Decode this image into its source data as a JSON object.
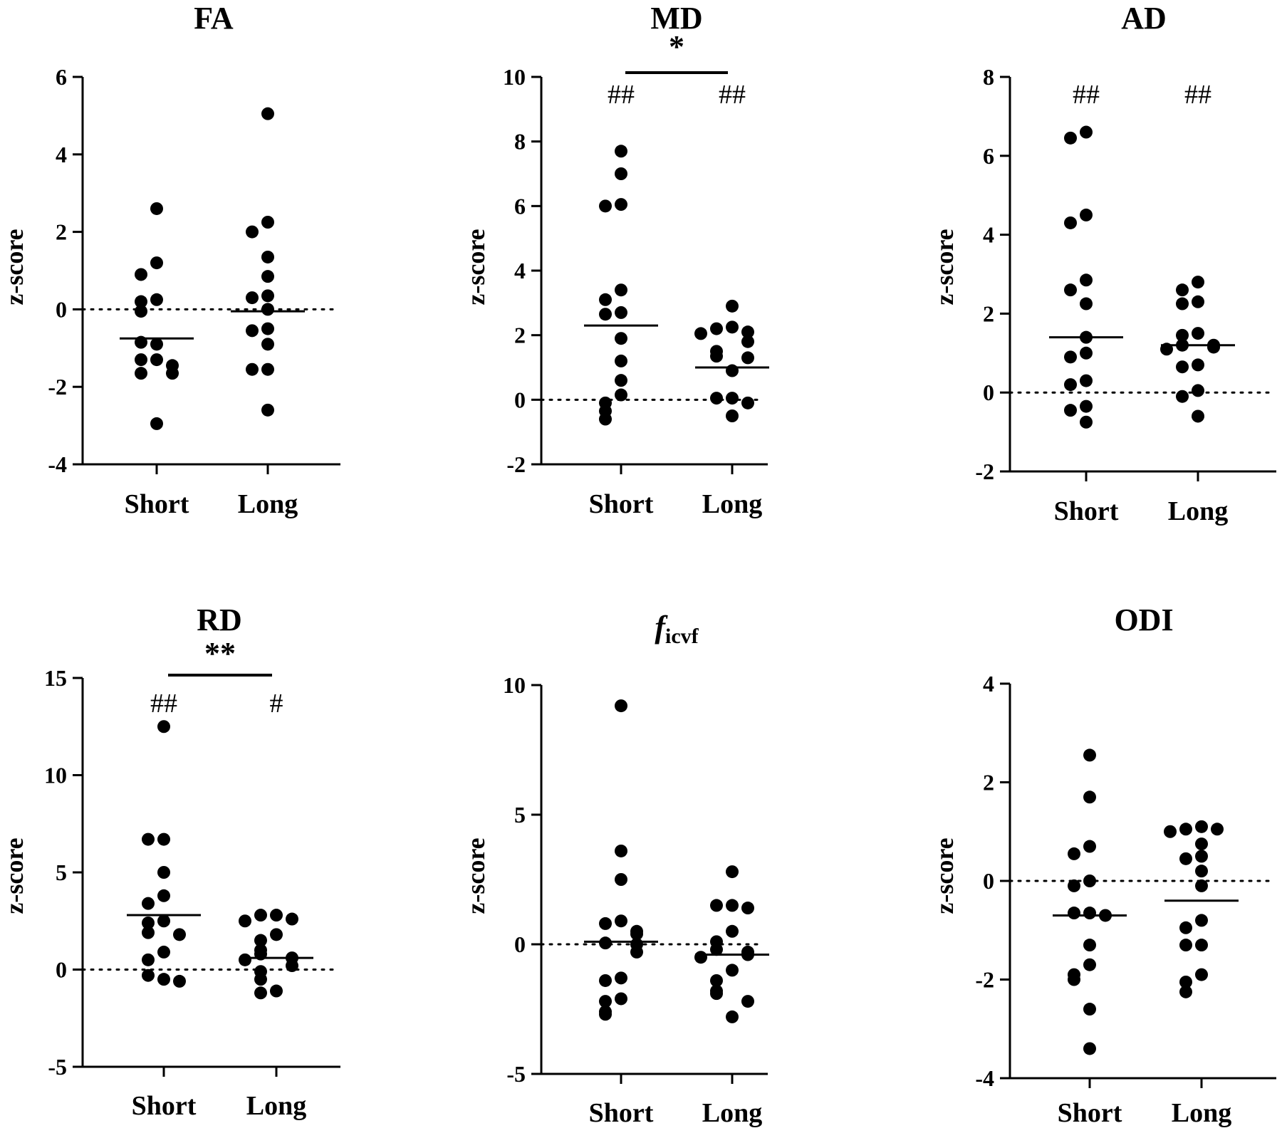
{
  "figure": {
    "background": "#ffffff",
    "ink": "#000000"
  },
  "chart_data": [
    {
      "type": "scatter",
      "title": "FA",
      "ylabel": "z-score",
      "ylim": [
        -4,
        6
      ],
      "yticks": [
        -4,
        -2,
        0,
        2,
        4,
        6
      ],
      "ytick_labels": [
        "-4",
        "-2",
        "0",
        "2",
        "4",
        "6"
      ],
      "categories": [
        "Short",
        "Long"
      ],
      "reference_line": 0,
      "series": [
        {
          "category": "Short",
          "values": [
            2.6,
            1.2,
            0.9,
            0.25,
            0.2,
            -0.05,
            -0.9,
            -0.85,
            -1.3,
            -1.3,
            -1.45,
            -1.65,
            -1.65,
            -2.95
          ],
          "mean": -0.75
        },
        {
          "category": "Long",
          "values": [
            5.05,
            2.25,
            2.0,
            1.35,
            0.85,
            0.35,
            0.3,
            0.0,
            -0.5,
            -0.55,
            -0.9,
            -1.55,
            -1.55,
            -2.6
          ],
          "mean": -0.05
        }
      ],
      "group_marks": [],
      "comparison": null
    },
    {
      "type": "scatter",
      "title": "MD",
      "ylabel": "z-score",
      "ylim": [
        -2,
        10
      ],
      "yticks": [
        -2,
        0,
        2,
        4,
        6,
        8,
        10
      ],
      "ytick_labels": [
        "-2",
        "0",
        "2",
        "4",
        "6",
        "8",
        "10"
      ],
      "categories": [
        "Short",
        "Long"
      ],
      "reference_line": 0,
      "series": [
        {
          "category": "Short",
          "values": [
            7.7,
            7.0,
            6.05,
            6.0,
            3.4,
            3.1,
            2.7,
            2.65,
            1.9,
            1.2,
            0.6,
            0.15,
            -0.1,
            -0.35,
            -0.6
          ],
          "mean": 2.3
        },
        {
          "category": "Long",
          "values": [
            2.9,
            2.25,
            2.2,
            2.1,
            2.05,
            1.8,
            1.5,
            1.35,
            1.3,
            0.9,
            0.05,
            0.05,
            -0.1,
            -0.5
          ],
          "mean": 1.0
        }
      ],
      "group_marks": [
        "##",
        "##"
      ],
      "comparison": "*"
    },
    {
      "type": "scatter",
      "title": "AD",
      "ylabel": "z-score",
      "ylim": [
        -2,
        8
      ],
      "yticks": [
        -2,
        0,
        2,
        4,
        6,
        8
      ],
      "ytick_labels": [
        "-2",
        "0",
        "2",
        "4",
        "6",
        "8"
      ],
      "categories": [
        "Short",
        "Long"
      ],
      "reference_line": 0,
      "series": [
        {
          "category": "Short",
          "values": [
            6.6,
            6.45,
            4.5,
            4.3,
            2.85,
            2.6,
            2.25,
            1.4,
            1.0,
            0.9,
            0.3,
            0.2,
            -0.35,
            -0.45,
            -0.75
          ],
          "mean": 1.4
        },
        {
          "category": "Long",
          "values": [
            2.8,
            2.6,
            2.3,
            2.25,
            1.5,
            1.45,
            1.2,
            1.2,
            1.15,
            1.1,
            0.7,
            0.65,
            0.05,
            -0.1,
            -0.6
          ],
          "mean": 1.2
        }
      ],
      "group_marks": [
        "##",
        "##"
      ],
      "comparison": null
    },
    {
      "type": "scatter",
      "title": "RD",
      "ylabel": "z-score",
      "ylim": [
        -5,
        15
      ],
      "yticks": [
        -5,
        0,
        5,
        10,
        15
      ],
      "ytick_labels": [
        "-5",
        "0",
        "5",
        "10",
        "15"
      ],
      "categories": [
        "Short",
        "Long"
      ],
      "reference_line": 0,
      "series": [
        {
          "category": "Short",
          "values": [
            12.5,
            6.7,
            6.7,
            5.0,
            3.8,
            3.4,
            2.5,
            2.4,
            1.9,
            1.8,
            0.9,
            0.5,
            -0.5,
            -0.3,
            -0.6
          ],
          "mean": 2.8
        },
        {
          "category": "Long",
          "values": [
            2.8,
            2.8,
            2.6,
            2.5,
            1.8,
            1.5,
            1.0,
            0.8,
            0.6,
            0.5,
            0.2,
            -0.1,
            -0.5,
            -1.1,
            -1.2
          ],
          "mean": 0.6
        }
      ],
      "group_marks": [
        "##",
        "#"
      ],
      "comparison": "**"
    },
    {
      "type": "scatter",
      "title": "icvf",
      "title_main": "f",
      "title_sub": "icvf",
      "ylabel": "z-score",
      "ylim": [
        -5,
        10
      ],
      "yticks": [
        -5,
        0,
        5,
        10
      ],
      "ytick_labels": [
        "-5",
        "0",
        "5",
        "10"
      ],
      "categories": [
        "Short",
        "Long"
      ],
      "reference_line": 0,
      "series": [
        {
          "category": "Short",
          "values": [
            9.2,
            3.6,
            2.5,
            0.9,
            0.8,
            0.5,
            0.4,
            0.05,
            0.0,
            -0.3,
            -1.3,
            -1.4,
            -2.1,
            -2.2,
            -2.6,
            -2.7
          ],
          "mean": 0.1
        },
        {
          "category": "Long",
          "values": [
            2.8,
            1.5,
            1.5,
            1.4,
            0.5,
            0.1,
            -0.2,
            -0.3,
            -0.4,
            -0.5,
            -1.0,
            -1.4,
            -1.8,
            -1.9,
            -2.2,
            -2.8
          ],
          "mean": -0.4
        }
      ],
      "group_marks": [],
      "comparison": null
    },
    {
      "type": "scatter",
      "title": "ODI",
      "ylabel": "z-score",
      "ylim": [
        -4,
        4
      ],
      "yticks": [
        -4,
        -2,
        0,
        2,
        4
      ],
      "ytick_labels": [
        "-4",
        "-2",
        "0",
        "2",
        "4"
      ],
      "categories": [
        "Short",
        "Long"
      ],
      "reference_line": 0,
      "series": [
        {
          "category": "Short",
          "values": [
            2.55,
            1.7,
            0.7,
            0.55,
            0.0,
            -0.1,
            -0.65,
            -0.65,
            -0.7,
            -1.3,
            -1.7,
            -1.9,
            -2.0,
            -2.6,
            -3.4
          ],
          "mean": -0.7
        },
        {
          "category": "Long",
          "values": [
            1.1,
            1.05,
            1.05,
            1.0,
            0.75,
            0.5,
            0.45,
            0.2,
            -0.1,
            -0.8,
            -0.95,
            -1.3,
            -1.3,
            -1.9,
            -2.05,
            -2.25
          ],
          "mean": -0.4
        }
      ],
      "group_marks": [],
      "comparison": null
    }
  ]
}
